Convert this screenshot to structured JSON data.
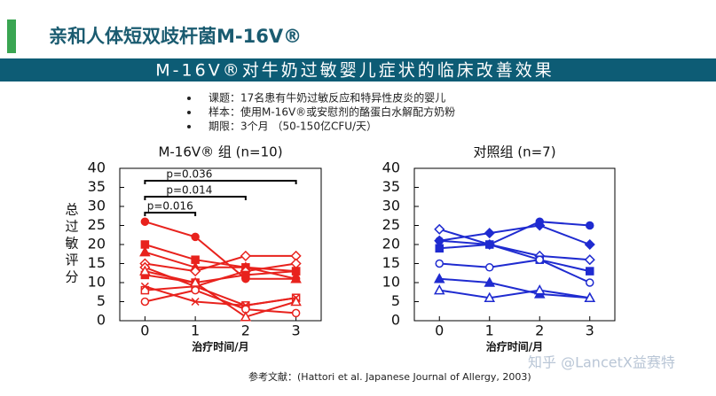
{
  "header": {
    "title": "亲和人体短双歧杆菌M-16V®"
  },
  "banner": {
    "title": "M-16V®对牛奶过敏婴儿症状的临床改善效果"
  },
  "bullets": [
    "课题：17名患有牛奶过敏反应和特异性皮炎的婴儿",
    "样本：使用M-16V®或安慰剂的酪蛋白水解配方奶粉",
    "期限：3个月 （50-150亿CFU/天）"
  ],
  "reference": "参考文献：(Hattori et al. Japanese Journal of Allergy, 2003)",
  "watermark": "知乎 @LancetX益赛特",
  "chart_data": [
    {
      "type": "line",
      "title": "M-16V® 组 (n=10)",
      "ylabel": "总过敏评分",
      "xlabel": "治疗时间/月",
      "x": [
        0,
        1,
        2,
        3
      ],
      "xlim": [
        -0.5,
        3.5
      ],
      "xticks": [
        0,
        1,
        2,
        3
      ],
      "ylim": [
        0,
        40
      ],
      "yticks": [
        0,
        5,
        10,
        15,
        20,
        25,
        30,
        35,
        40
      ],
      "series": [
        {
          "color": "#e8221d",
          "marker": "circle",
          "filled": true,
          "values": [
            26,
            22,
            11,
            11
          ]
        },
        {
          "color": "#e8221d",
          "marker": "square",
          "filled": true,
          "values": [
            20,
            16,
            14,
            13
          ]
        },
        {
          "color": "#e8221d",
          "marker": "triangle",
          "filled": true,
          "values": [
            18,
            14,
            14,
            11
          ]
        },
        {
          "color": "#e8221d",
          "marker": "diamond",
          "filled": false,
          "values": [
            15,
            13,
            17,
            17
          ]
        },
        {
          "color": "#e8221d",
          "marker": "diamond",
          "filled": false,
          "values": [
            14,
            9,
            13,
            15
          ]
        },
        {
          "color": "#e8221d",
          "marker": "square",
          "filled": true,
          "values": [
            12,
            10,
            12,
            13
          ]
        },
        {
          "color": "#e8221d",
          "marker": "square",
          "filled": false,
          "values": [
            8,
            9,
            4,
            6
          ]
        },
        {
          "color": "#e8221d",
          "marker": "x",
          "filled": false,
          "values": [
            9,
            5,
            4,
            6
          ]
        },
        {
          "color": "#e8221d",
          "marker": "circle",
          "filled": false,
          "values": [
            5,
            8,
            3,
            2
          ]
        },
        {
          "color": "#e8221d",
          "marker": "triangle",
          "filled": false,
          "values": [
            13,
            10,
            1,
            5
          ]
        }
      ],
      "annotations": [
        {
          "label": "p=0.016",
          "from": 0,
          "to": 1
        },
        {
          "label": "p=0.014",
          "from": 0,
          "to": 2
        },
        {
          "label": "p=0.036",
          "from": 0,
          "to": 3
        }
      ]
    },
    {
      "type": "line",
      "title": "对照组 (n=7)",
      "xlabel": "治疗时间/月",
      "x": [
        0,
        1,
        2,
        3
      ],
      "xlim": [
        -0.5,
        3.5
      ],
      "xticks": [
        0,
        1,
        2,
        3
      ],
      "ylim": [
        0,
        40
      ],
      "yticks": [
        0,
        5,
        10,
        15,
        20,
        25,
        30,
        35,
        40
      ],
      "series": [
        {
          "color": "#1f2bd0",
          "marker": "circle",
          "filled": true,
          "values": [
            21,
            20,
            26,
            25
          ]
        },
        {
          "color": "#1f2bd0",
          "marker": "diamond",
          "filled": false,
          "values": [
            24,
            20,
            17,
            16
          ]
        },
        {
          "color": "#1f2bd0",
          "marker": "diamond",
          "filled": true,
          "values": [
            21,
            23,
            25,
            20
          ]
        },
        {
          "color": "#1f2bd0",
          "marker": "square",
          "filled": true,
          "values": [
            19,
            20,
            16,
            13
          ]
        },
        {
          "color": "#1f2bd0",
          "marker": "circle",
          "filled": false,
          "values": [
            15,
            14,
            16,
            10
          ]
        },
        {
          "color": "#1f2bd0",
          "marker": "triangle",
          "filled": true,
          "values": [
            11,
            10,
            7,
            6
          ]
        },
        {
          "color": "#1f2bd0",
          "marker": "triangle",
          "filled": false,
          "values": [
            8,
            6,
            8,
            6
          ]
        }
      ]
    }
  ]
}
